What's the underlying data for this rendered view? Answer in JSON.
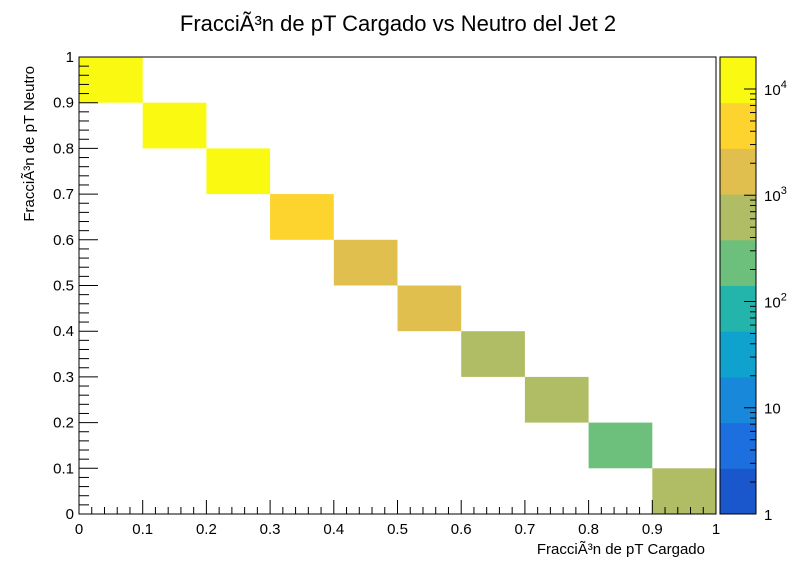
{
  "chart_data": {
    "type": "heatmap",
    "title": "FracciÃ³n de pT Cargado vs Neutro del Jet 2",
    "xlabel": "FracciÃ³n de pT Cargado",
    "ylabel": "FracciÃ³n de pT Neutro",
    "xlim": [
      0,
      1
    ],
    "ylim": [
      0,
      1
    ],
    "x_ticks": [
      "0",
      "0.1",
      "0.2",
      "0.3",
      "0.4",
      "0.5",
      "0.6",
      "0.7",
      "0.8",
      "0.9",
      "1"
    ],
    "y_ticks": [
      "0",
      "0.1",
      "0.2",
      "0.3",
      "0.4",
      "0.5",
      "0.6",
      "0.7",
      "0.8",
      "0.9",
      "1"
    ],
    "grid": false,
    "bin_width": 0.1,
    "bins": [
      {
        "x": 0.0,
        "y": 0.9,
        "value": 12000
      },
      {
        "x": 0.1,
        "y": 0.8,
        "value": 12000
      },
      {
        "x": 0.2,
        "y": 0.7,
        "value": 11000
      },
      {
        "x": 0.3,
        "y": 0.6,
        "value": 4500
      },
      {
        "x": 0.4,
        "y": 0.5,
        "value": 2000
      },
      {
        "x": 0.5,
        "y": 0.4,
        "value": 2000
      },
      {
        "x": 0.6,
        "y": 0.3,
        "value": 700
      },
      {
        "x": 0.7,
        "y": 0.2,
        "value": 700
      },
      {
        "x": 0.8,
        "y": 0.1,
        "value": 300
      },
      {
        "x": 0.9,
        "y": 0.0,
        "value": 700
      }
    ],
    "colorbar": {
      "scale": "log",
      "zlim": [
        1,
        20000
      ],
      "labels": [
        {
          "value": 1,
          "base": "1",
          "exp": ""
        },
        {
          "value": 10,
          "base": "10",
          "exp": ""
        },
        {
          "value": 100,
          "base": "10",
          "exp": "2"
        },
        {
          "value": 1000,
          "base": "10",
          "exp": "3"
        },
        {
          "value": 10000,
          "base": "10",
          "exp": "4"
        }
      ],
      "colors": [
        "#1a56cc",
        "#1d6fe0",
        "#1888da",
        "#10a2cf",
        "#23b5ac",
        "#6cc07c",
        "#b1bd65",
        "#e0bf4f",
        "#fdd32e",
        "#f9f911"
      ]
    }
  }
}
